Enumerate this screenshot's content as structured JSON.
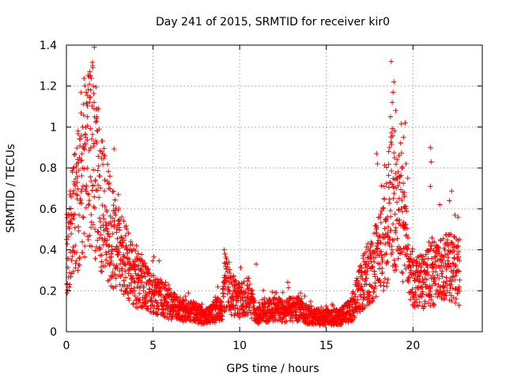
{
  "chart_data": {
    "type": "scatter",
    "title": "Day 241 of 2015, SRMTID for receiver kir0",
    "xlabel": "GPS time / hours",
    "ylabel": "SRMTID / TECUs",
    "xlim": [
      0,
      24
    ],
    "ylim": [
      0,
      1.4
    ],
    "xticks": [
      0,
      5,
      10,
      15,
      20
    ],
    "xtick_labels": [
      "0",
      "5",
      "10",
      "15",
      "20"
    ],
    "yticks": [
      0,
      0.2,
      0.4,
      0.6,
      0.8,
      1,
      1.2,
      1.4
    ],
    "ytick_labels": [
      "0",
      "0.2",
      "0.4",
      "0.6",
      "0.8",
      "1",
      "1.2",
      "1.4"
    ],
    "grid": true,
    "marker": "+",
    "color": "#ff0000",
    "series": [
      {
        "name": "SRMTID",
        "profile": [
          [
            0.0,
            0.4
          ],
          [
            0.3,
            0.5
          ],
          [
            0.6,
            0.62
          ],
          [
            1.0,
            0.75
          ],
          [
            1.4,
            0.9
          ],
          [
            1.8,
            0.72
          ],
          [
            2.2,
            0.58
          ],
          [
            2.6,
            0.48
          ],
          [
            3.0,
            0.4
          ],
          [
            3.5,
            0.33
          ],
          [
            4.0,
            0.26
          ],
          [
            4.5,
            0.22
          ],
          [
            5.0,
            0.19
          ],
          [
            5.5,
            0.16
          ],
          [
            6.0,
            0.13
          ],
          [
            6.5,
            0.11
          ],
          [
            7.0,
            0.1
          ],
          [
            7.5,
            0.09
          ],
          [
            8.0,
            0.07
          ],
          [
            8.5,
            0.09
          ],
          [
            9.0,
            0.13
          ],
          [
            9.2,
            0.24
          ],
          [
            9.5,
            0.18
          ],
          [
            10.0,
            0.15
          ],
          [
            10.5,
            0.18
          ],
          [
            11.0,
            0.08
          ],
          [
            11.5,
            0.1
          ],
          [
            12.0,
            0.11
          ],
          [
            12.5,
            0.1
          ],
          [
            13.0,
            0.11
          ],
          [
            13.5,
            0.1
          ],
          [
            14.0,
            0.08
          ],
          [
            14.5,
            0.07
          ],
          [
            15.0,
            0.07
          ],
          [
            15.5,
            0.07
          ],
          [
            16.0,
            0.08
          ],
          [
            16.5,
            0.12
          ],
          [
            17.0,
            0.22
          ],
          [
            17.5,
            0.3
          ],
          [
            18.0,
            0.36
          ],
          [
            18.5,
            0.48
          ],
          [
            18.8,
            0.7
          ],
          [
            19.0,
            0.55
          ],
          [
            19.3,
            0.62
          ],
          [
            19.6,
            0.4
          ],
          [
            19.9,
            0.3
          ],
          [
            20.2,
            0.24
          ],
          [
            20.6,
            0.25
          ],
          [
            21.0,
            0.27
          ],
          [
            21.5,
            0.3
          ],
          [
            22.0,
            0.32
          ],
          [
            22.5,
            0.3
          ],
          [
            22.7,
            0.28
          ]
        ],
        "x_range": [
          0.0,
          22.7
        ],
        "n_points": 2600,
        "spikes": [
          [
            1.35,
            1.27
          ],
          [
            1.4,
            1.25
          ],
          [
            1.55,
            1.2
          ],
          [
            1.6,
            1.12
          ],
          [
            1.75,
            1.05
          ],
          [
            1.8,
            0.98
          ],
          [
            1.2,
            1.05
          ],
          [
            0.9,
            0.87
          ],
          [
            1.1,
            0.95
          ],
          [
            0.75,
            0.85
          ],
          [
            18.75,
            1.32
          ],
          [
            18.9,
            1.22
          ],
          [
            18.85,
            1.17
          ],
          [
            18.8,
            1.12
          ],
          [
            19.0,
            1.08
          ],
          [
            18.7,
            1.05
          ],
          [
            19.55,
            1.02
          ],
          [
            19.45,
            0.95
          ],
          [
            18.95,
            0.98
          ],
          [
            18.6,
            0.88
          ],
          [
            17.9,
            0.87
          ],
          [
            17.95,
            0.82
          ],
          [
            19.6,
            0.82
          ],
          [
            19.7,
            0.75
          ],
          [
            19.5,
            0.68
          ],
          [
            21.0,
            0.9
          ],
          [
            21.05,
            0.83
          ],
          [
            21.0,
            0.71
          ],
          [
            22.1,
            0.64
          ],
          [
            22.6,
            0.56
          ],
          [
            9.1,
            0.4
          ],
          [
            9.15,
            0.38
          ],
          [
            10.95,
            0.33
          ],
          [
            2.45,
            0.7
          ],
          [
            3.0,
            0.67
          ]
        ]
      }
    ]
  }
}
